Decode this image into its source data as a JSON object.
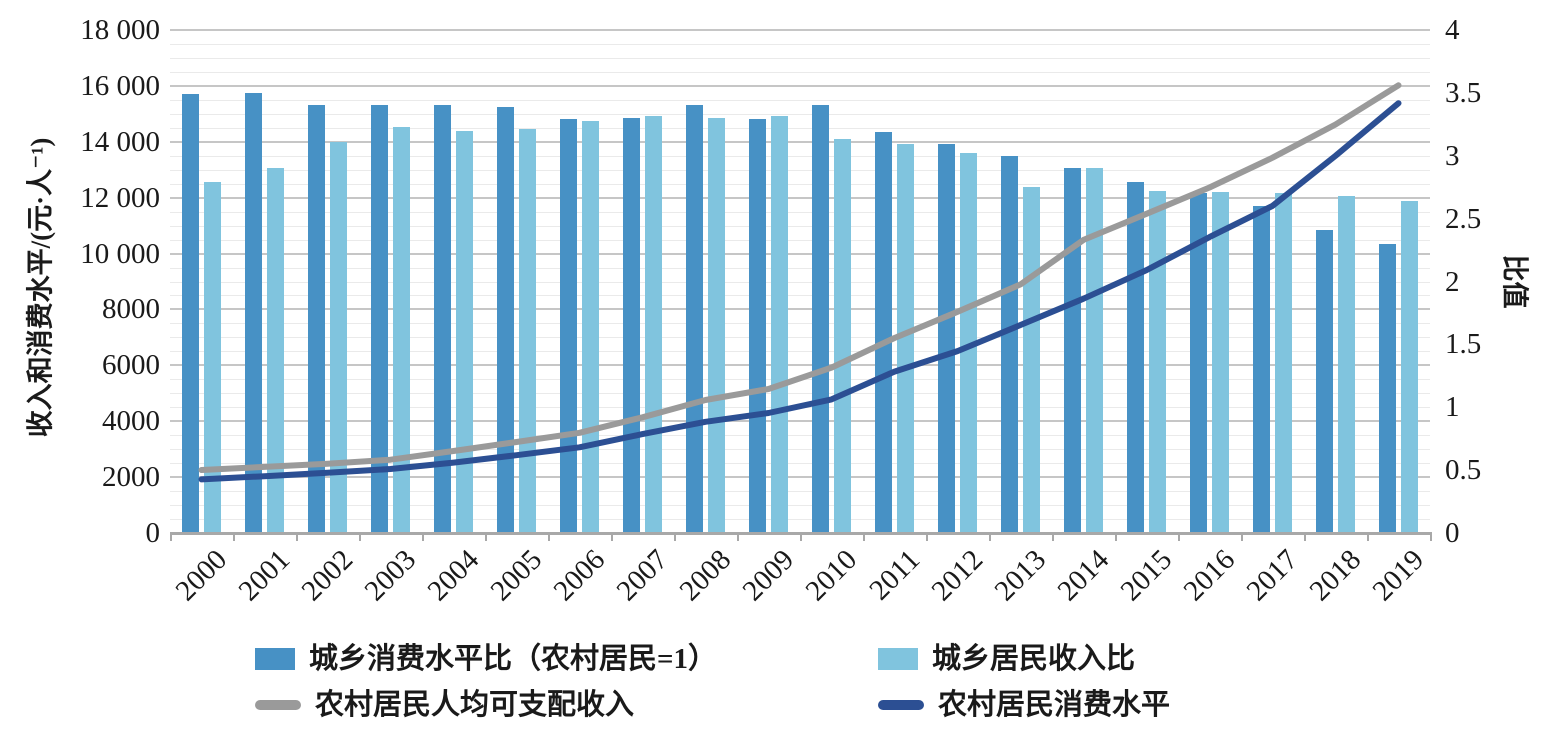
{
  "figure": {
    "left_axis_title": "收入和消费水平/(元·人⁻¹)",
    "right_axis_title": "比值"
  },
  "chart_data": {
    "type": "bar",
    "subtype": "combo-bar-line-dual-axis",
    "title": "",
    "categories": [
      "2000",
      "2001",
      "2002",
      "2003",
      "2004",
      "2005",
      "2006",
      "2007",
      "2008",
      "2009",
      "2010",
      "2011",
      "2012",
      "2013",
      "2014",
      "2015",
      "2016",
      "2017",
      "2018",
      "2019"
    ],
    "left_axis": {
      "label": "收入和消费水平/(元·人⁻¹)",
      "range": [
        0,
        18000
      ],
      "major_step": 2000,
      "minor_step": 500,
      "tick_labels": [
        "0",
        "2000",
        "4000",
        "6000",
        "8000",
        "10 000",
        "12 000",
        "14 000",
        "16 000",
        "18 000"
      ]
    },
    "right_axis": {
      "label": "比值",
      "range": [
        0,
        4
      ],
      "step": 0.5,
      "tick_labels": [
        "0",
        "0.5",
        "1",
        "1.5",
        "2",
        "2.5",
        "3",
        "3.5",
        "4"
      ]
    },
    "grid": "major-and-minor-horizontal",
    "legend_position": "bottom",
    "series": [
      {
        "name": "城乡消费水平比（农村居民=1）",
        "type": "bar",
        "axis": "right",
        "color": "#4791c5",
        "values": [
          3.49,
          3.5,
          3.4,
          3.4,
          3.4,
          3.39,
          3.29,
          3.3,
          3.4,
          3.29,
          3.4,
          3.19,
          3.09,
          3.0,
          2.9,
          2.79,
          2.7,
          2.6,
          2.41,
          2.3
        ]
      },
      {
        "name": "城乡居民收入比",
        "type": "bar",
        "axis": "right",
        "color": "#80c4de",
        "values": [
          2.79,
          2.9,
          3.11,
          3.23,
          3.2,
          3.21,
          3.28,
          3.32,
          3.3,
          3.32,
          3.13,
          3.09,
          3.02,
          2.75,
          2.9,
          2.72,
          2.71,
          2.7,
          2.68,
          2.64
        ]
      },
      {
        "name": "农村居民人均可支配收入",
        "type": "line",
        "axis": "left",
        "color": "#9a9a9a",
        "values": [
          2253,
          2366,
          2476,
          2622,
          2936,
          3255,
          3587,
          4140,
          4761,
          5153,
          5919,
          6977,
          7917,
          8896,
          10489,
          11422,
          12363,
          13432,
          14617,
          16021
        ]
      },
      {
        "name": "农村居民消费水平",
        "type": "line",
        "axis": "left",
        "color": "#2c4f93",
        "values": [
          1917,
          2032,
          2157,
          2292,
          2521,
          2784,
          3066,
          3538,
          3981,
          4295,
          4782,
          5775,
          6511,
          7442,
          8383,
          9409,
          10590,
          11704,
          13500,
          15382
        ]
      }
    ]
  }
}
